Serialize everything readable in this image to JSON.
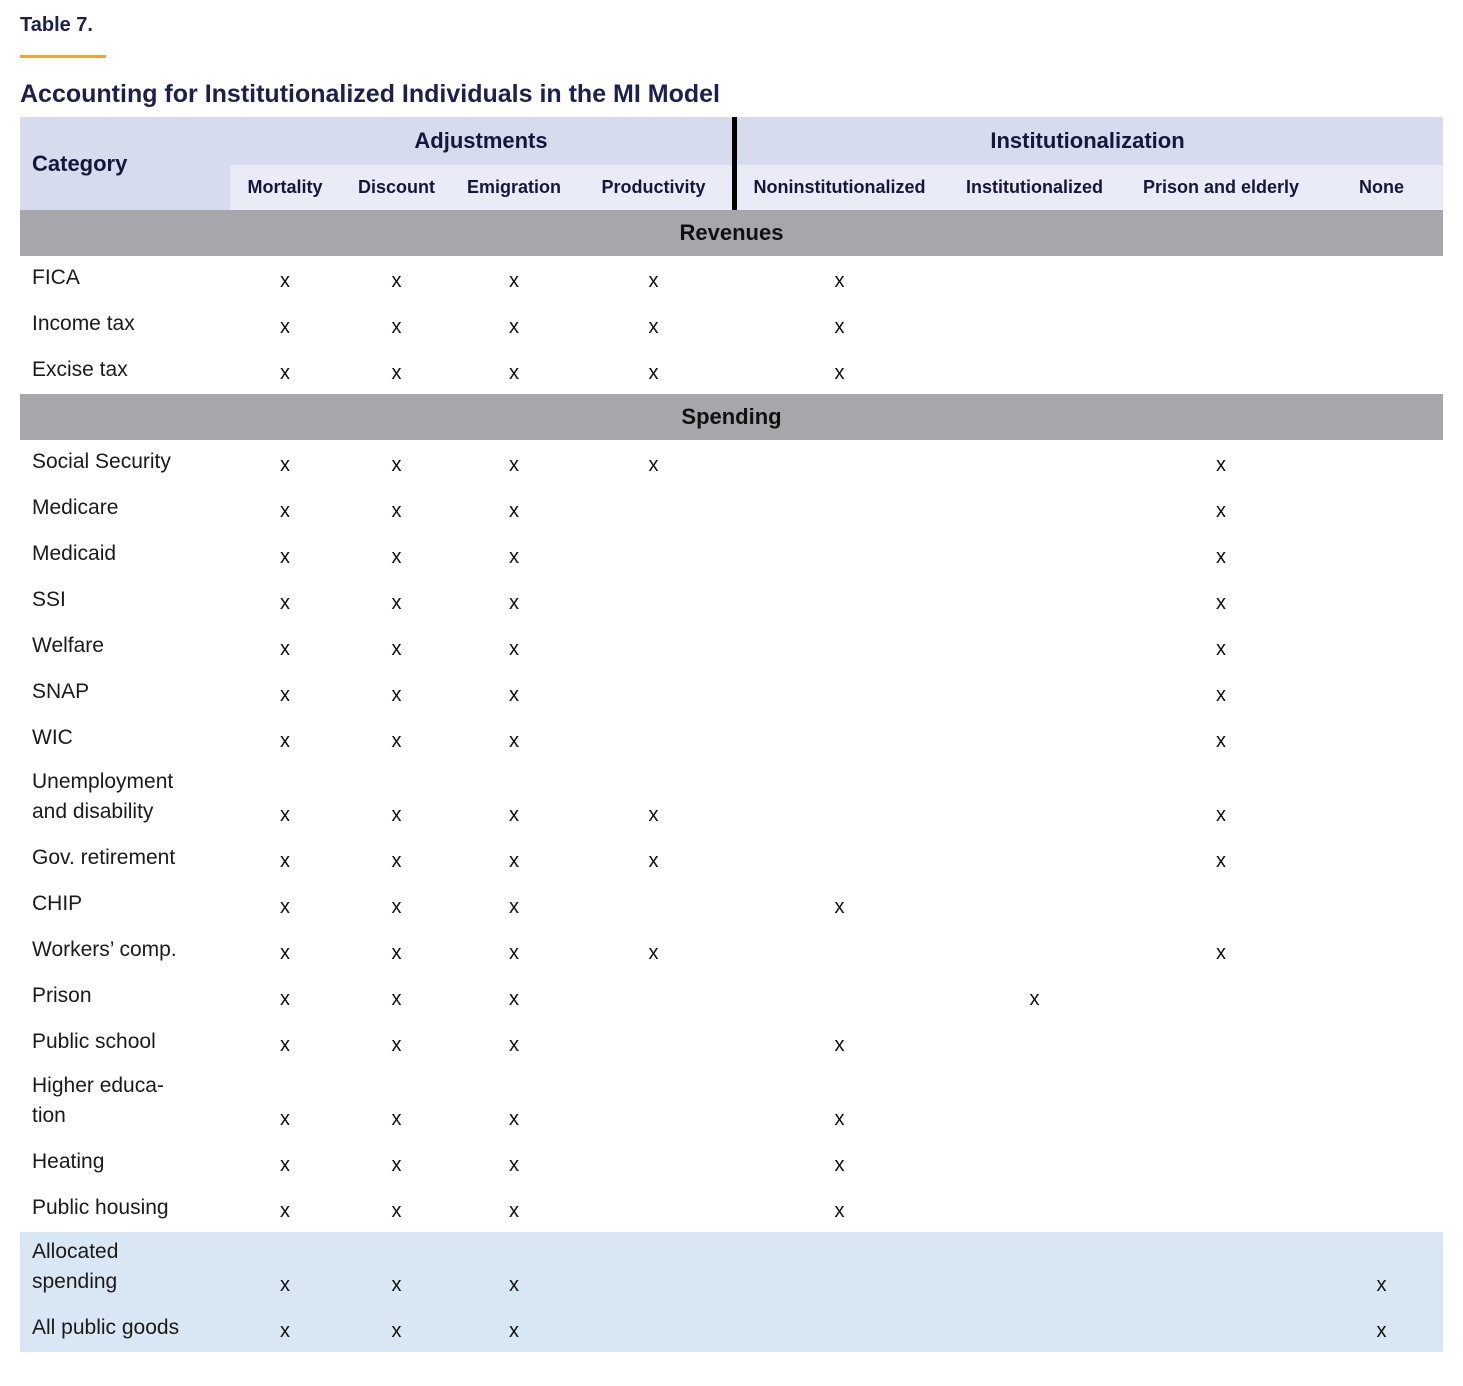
{
  "page": {
    "table_number": "Table 7.",
    "title": "Accounting for Institutionalized Individuals in the MI Model"
  },
  "colors": {
    "accent_orange": "#F0A336",
    "title_navy": "#1B2051",
    "header_fill": "#D6DCEE",
    "subheader_fill": "#E9ECF6",
    "section_band_fill": "#A6A7AB",
    "highlight_row_fill": "#D9E7F5"
  },
  "table": {
    "category_header": "Category",
    "mark": "x",
    "groups": [
      {
        "label": "Adjustments",
        "columns": [
          "Mortality",
          "Discount",
          "Emigration",
          "Productivity"
        ]
      },
      {
        "label": "Institutionalization",
        "columns": [
          "Noninstitutionalized",
          "Institutionalized",
          "Prison and elderly",
          "None"
        ]
      }
    ],
    "column_order": [
      "Mortality",
      "Discount",
      "Emigration",
      "Productivity",
      "Noninstitutionalized",
      "Institutionalized",
      "Prison and elderly",
      "None"
    ],
    "sections": [
      {
        "label": "Revenues",
        "rows": [
          {
            "lines": [
              "FICA"
            ],
            "marks": [
              1,
              1,
              1,
              1,
              1,
              0,
              0,
              0
            ]
          },
          {
            "lines": [
              "Income tax"
            ],
            "marks": [
              1,
              1,
              1,
              1,
              1,
              0,
              0,
              0
            ]
          },
          {
            "lines": [
              "Excise tax"
            ],
            "marks": [
              1,
              1,
              1,
              1,
              1,
              0,
              0,
              0
            ]
          }
        ]
      },
      {
        "label": "Spending",
        "rows": [
          {
            "lines": [
              "Social Security"
            ],
            "marks": [
              1,
              1,
              1,
              1,
              0,
              0,
              1,
              0
            ]
          },
          {
            "lines": [
              "Medicare"
            ],
            "marks": [
              1,
              1,
              1,
              0,
              0,
              0,
              1,
              0
            ]
          },
          {
            "lines": [
              "Medicaid"
            ],
            "marks": [
              1,
              1,
              1,
              0,
              0,
              0,
              1,
              0
            ]
          },
          {
            "lines": [
              "SSI"
            ],
            "marks": [
              1,
              1,
              1,
              0,
              0,
              0,
              1,
              0
            ]
          },
          {
            "lines": [
              "Welfare"
            ],
            "marks": [
              1,
              1,
              1,
              0,
              0,
              0,
              1,
              0
            ]
          },
          {
            "lines": [
              "SNAP"
            ],
            "marks": [
              1,
              1,
              1,
              0,
              0,
              0,
              1,
              0
            ]
          },
          {
            "lines": [
              "WIC"
            ],
            "marks": [
              1,
              1,
              1,
              0,
              0,
              0,
              1,
              0
            ]
          },
          {
            "lines": [
              "Unemployment",
              "and disability"
            ],
            "marks": [
              1,
              1,
              1,
              1,
              0,
              0,
              1,
              0
            ]
          },
          {
            "lines": [
              "Gov. retirement"
            ],
            "marks": [
              1,
              1,
              1,
              1,
              0,
              0,
              1,
              0
            ]
          },
          {
            "lines": [
              "CHIP"
            ],
            "marks": [
              1,
              1,
              1,
              0,
              1,
              0,
              0,
              0
            ]
          },
          {
            "lines": [
              "Workers’ comp."
            ],
            "marks": [
              1,
              1,
              1,
              1,
              0,
              0,
              1,
              0
            ]
          },
          {
            "lines": [
              "Prison"
            ],
            "marks": [
              1,
              1,
              1,
              0,
              0,
              1,
              0,
              0
            ]
          },
          {
            "lines": [
              "Public school"
            ],
            "marks": [
              1,
              1,
              1,
              0,
              1,
              0,
              0,
              0
            ]
          },
          {
            "lines": [
              "Higher educa-",
              "tion"
            ],
            "marks": [
              1,
              1,
              1,
              0,
              1,
              0,
              0,
              0
            ]
          },
          {
            "lines": [
              "Heating"
            ],
            "marks": [
              1,
              1,
              1,
              0,
              1,
              0,
              0,
              0
            ]
          },
          {
            "lines": [
              "Public housing"
            ],
            "marks": [
              1,
              1,
              1,
              0,
              1,
              0,
              0,
              0
            ]
          },
          {
            "lines": [
              "Allocated",
              "spending"
            ],
            "marks": [
              1,
              1,
              1,
              0,
              0,
              0,
              0,
              1
            ],
            "highlight": true
          },
          {
            "lines": [
              "All public goods"
            ],
            "marks": [
              1,
              1,
              1,
              0,
              0,
              0,
              0,
              1
            ],
            "highlight": true
          }
        ]
      }
    ]
  }
}
